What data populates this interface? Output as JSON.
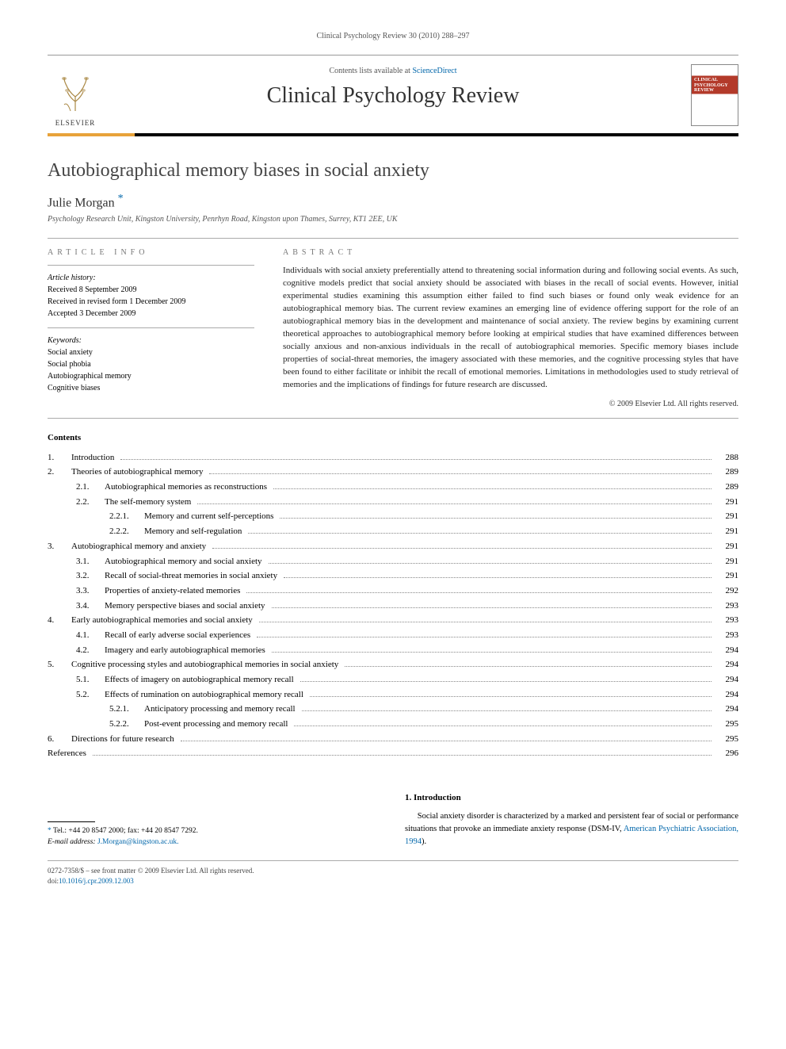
{
  "running_head": "Clinical Psychology Review 30 (2010) 288–297",
  "header": {
    "contents_prefix": "Contents lists available at ",
    "contents_link": "ScienceDirect",
    "journal_name": "Clinical Psychology Review",
    "publisher_logo_text": "ELSEVIER",
    "cover_title": "CLINICAL PSYCHOLOGY REVIEW",
    "colors": {
      "orange_bar": "#e8a23a",
      "cover_red": "#b33a2a",
      "link": "#0066aa",
      "header_rule": "#000000"
    }
  },
  "article": {
    "title": "Autobiographical memory biases in social anxiety",
    "author": "Julie Morgan",
    "corr_marker": "*",
    "affiliation": "Psychology Research Unit, Kingston University, Penrhyn Road, Kingston upon Thames, Surrey, KT1 2EE, UK"
  },
  "info": {
    "heading": "article info",
    "history_label": "Article history:",
    "received": "Received 8 September 2009",
    "revised": "Received in revised form 1 December 2009",
    "accepted": "Accepted 3 December 2009",
    "keywords_label": "Keywords:",
    "keywords": [
      "Social anxiety",
      "Social phobia",
      "Autobiographical memory",
      "Cognitive biases"
    ]
  },
  "abstract": {
    "heading": "abstract",
    "text": "Individuals with social anxiety preferentially attend to threatening social information during and following social events. As such, cognitive models predict that social anxiety should be associated with biases in the recall of social events. However, initial experimental studies examining this assumption either failed to find such biases or found only weak evidence for an autobiographical memory bias. The current review examines an emerging line of evidence offering support for the role of an autobiographical memory bias in the development and maintenance of social anxiety. The review begins by examining current theoretical approaches to autobiographical memory before looking at empirical studies that have examined differences between socially anxious and non-anxious individuals in the recall of autobiographical memories. Specific memory biases include properties of social-threat memories, the imagery associated with these memories, and the cognitive processing styles that have been found to either facilitate or inhibit the recall of emotional memories. Limitations in methodologies used to study retrieval of memories and the implications of findings for future research are discussed.",
    "copyright": "© 2009 Elsevier Ltd. All rights reserved."
  },
  "contents": {
    "heading": "Contents",
    "items": [
      {
        "num": "1.",
        "level": 1,
        "label": "Introduction",
        "page": "288"
      },
      {
        "num": "2.",
        "level": 1,
        "label": "Theories of autobiographical memory",
        "page": "289"
      },
      {
        "num": "2.1.",
        "level": 2,
        "label": "Autobiographical memories as reconstructions",
        "page": "289"
      },
      {
        "num": "2.2.",
        "level": 2,
        "label": "The self-memory system",
        "page": "291"
      },
      {
        "num": "2.2.1.",
        "level": 3,
        "label": "Memory and current self-perceptions",
        "page": "291"
      },
      {
        "num": "2.2.2.",
        "level": 3,
        "label": "Memory and self-regulation",
        "page": "291"
      },
      {
        "num": "3.",
        "level": 1,
        "label": "Autobiographical memory and anxiety",
        "page": "291"
      },
      {
        "num": "3.1.",
        "level": 2,
        "label": "Autobiographical memory and social anxiety",
        "page": "291"
      },
      {
        "num": "3.2.",
        "level": 2,
        "label": "Recall of social-threat memories in social anxiety",
        "page": "291"
      },
      {
        "num": "3.3.",
        "level": 2,
        "label": "Properties of anxiety-related memories",
        "page": "292"
      },
      {
        "num": "3.4.",
        "level": 2,
        "label": "Memory perspective biases and social anxiety",
        "page": "293"
      },
      {
        "num": "4.",
        "level": 1,
        "label": "Early autobiographical memories and social anxiety",
        "page": "293"
      },
      {
        "num": "4.1.",
        "level": 2,
        "label": "Recall of early adverse social experiences",
        "page": "293"
      },
      {
        "num": "4.2.",
        "level": 2,
        "label": "Imagery and early autobiographical memories",
        "page": "294"
      },
      {
        "num": "5.",
        "level": 1,
        "label": "Cognitive processing styles and autobiographical memories in social anxiety",
        "page": "294"
      },
      {
        "num": "5.1.",
        "level": 2,
        "label": "Effects of imagery on autobiographical memory recall",
        "page": "294"
      },
      {
        "num": "5.2.",
        "level": 2,
        "label": "Effects of rumination on autobiographical memory recall",
        "page": "294"
      },
      {
        "num": "5.2.1.",
        "level": 3,
        "label": "Anticipatory processing and memory recall",
        "page": "294"
      },
      {
        "num": "5.2.2.",
        "level": 3,
        "label": "Post-event processing and memory recall",
        "page": "295"
      },
      {
        "num": "6.",
        "level": 1,
        "label": "Directions for future research",
        "page": "295"
      },
      {
        "num": "",
        "level": 1,
        "label": "References",
        "page": "296",
        "refs": true
      }
    ]
  },
  "intro": {
    "heading": "1. Introduction",
    "text_pre": "Social anxiety disorder is characterized by a marked and persistent fear of social or performance situations that provoke an immediate anxiety response (DSM-IV, ",
    "cite": "American Psychiatric Association, 1994",
    "text_post": ")."
  },
  "corr": {
    "tel_line": "Tel.: +44 20 8547 2000; fax: +44 20 8547 7292.",
    "email_label": "E-mail address:",
    "email": "J.Morgan@kingston.ac.uk."
  },
  "footer": {
    "line1": "0272-7358/$ – see front matter © 2009 Elsevier Ltd. All rights reserved.",
    "doi_label": "doi:",
    "doi": "10.1016/j.cpr.2009.12.003"
  },
  "typography": {
    "title_fontsize": 24,
    "journal_fontsize": 28,
    "body_fontsize": 11,
    "info_fontsize": 10,
    "text_color": "#000000",
    "muted_color": "#555555"
  }
}
